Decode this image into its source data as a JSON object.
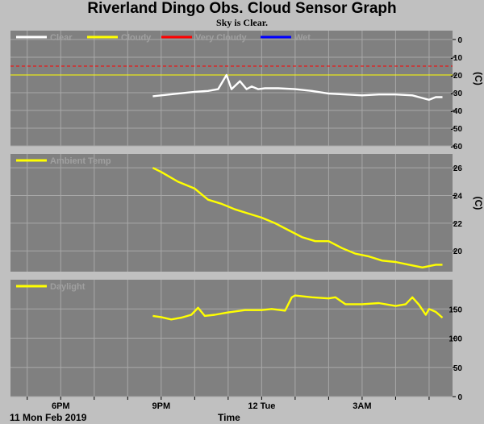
{
  "title": "Riverland Dingo Obs. Cloud Sensor Graph",
  "subtitle": "Sky is Clear.",
  "footer": {
    "date": "11 Mon Feb 2019",
    "xlabel": "Time"
  },
  "colors": {
    "panel_bg": "#808080",
    "page_bg": "#c0c0c0",
    "grid": "#a8a8a8",
    "clear": "#ffffff",
    "cloudy": "#ffff00",
    "very_cloudy": "#ff0000",
    "wet": "#0000ff",
    "legend_text": "#a0a0a0"
  },
  "chart_data": [
    {
      "type": "line",
      "name": "sky",
      "ylabel": "(C)",
      "ylim": [
        -60,
        5
      ],
      "yticks": [
        0,
        -10,
        -20,
        -30,
        -40,
        -50,
        -60
      ],
      "legend": [
        {
          "name": "Clear",
          "color": "#ffffff"
        },
        {
          "name": "Cloudy",
          "color": "#ffff00"
        },
        {
          "name": "Very Cloudy",
          "color": "#ff0000"
        },
        {
          "name": "Wet",
          "color": "#0000ff"
        }
      ],
      "thresholds": [
        {
          "value": -15,
          "color": "#ff0000",
          "dashed": true
        },
        {
          "value": -20,
          "color": "#ffff00",
          "dashed": false
        }
      ],
      "series": [
        {
          "name": "Clear",
          "color": "#ffffff",
          "x": [
            20.75,
            21.0,
            21.5,
            22.0,
            22.4,
            22.7,
            22.95,
            23.1,
            23.35,
            23.55,
            23.7,
            23.9,
            24.1,
            24.5,
            25.0,
            25.5,
            26.0,
            26.5,
            27.0,
            27.5,
            28.0,
            28.5,
            28.8,
            29.0,
            29.2,
            29.4
          ],
          "y": [
            -32,
            -31.5,
            -30.5,
            -29.5,
            -29,
            -28,
            -20,
            -28,
            -23.5,
            -28,
            -26.5,
            -28,
            -27.5,
            -27.5,
            -28,
            -29,
            -30.5,
            -31,
            -31.5,
            -31,
            -31,
            -31.5,
            -33,
            -34,
            -32.5,
            -32.5
          ]
        }
      ]
    },
    {
      "type": "line",
      "name": "ambient",
      "ylabel": "(C)",
      "ylim": [
        18.5,
        27
      ],
      "yticks": [
        26,
        24,
        22,
        20
      ],
      "legend": [
        {
          "name": "Ambient Temp",
          "color": "#ffff00"
        }
      ],
      "series": [
        {
          "name": "Ambient Temp",
          "color": "#ffff00",
          "x": [
            20.75,
            21.0,
            21.5,
            22.0,
            22.4,
            22.8,
            23.2,
            23.6,
            24.0,
            24.4,
            24.8,
            25.2,
            25.6,
            26.0,
            26.4,
            26.8,
            27.2,
            27.6,
            28.0,
            28.4,
            28.8,
            29.2,
            29.4
          ],
          "y": [
            26.0,
            25.7,
            25.0,
            24.5,
            23.7,
            23.4,
            23.0,
            22.7,
            22.4,
            22.0,
            21.5,
            21.0,
            20.7,
            20.7,
            20.2,
            19.8,
            19.6,
            19.3,
            19.2,
            19.0,
            18.8,
            19.0,
            19.0
          ]
        }
      ]
    },
    {
      "type": "line",
      "name": "daylight",
      "ylabel": "",
      "ylim": [
        0,
        200
      ],
      "yticks": [
        150,
        100,
        50,
        0
      ],
      "legend": [
        {
          "name": "Daylight",
          "color": "#ffff00"
        }
      ],
      "series": [
        {
          "name": "Daylight",
          "color": "#ffff00",
          "x": [
            20.75,
            21.0,
            21.3,
            21.6,
            21.9,
            22.1,
            22.3,
            22.6,
            23.0,
            23.5,
            24.0,
            24.3,
            24.7,
            24.9,
            25.0,
            25.5,
            26.0,
            26.2,
            26.5,
            27.0,
            27.5,
            28.0,
            28.3,
            28.5,
            28.7,
            28.9,
            29.0,
            29.2,
            29.4
          ],
          "y": [
            138,
            136,
            132,
            135,
            140,
            152,
            138,
            140,
            144,
            148,
            148,
            150,
            147,
            170,
            173,
            170,
            168,
            170,
            158,
            158,
            160,
            155,
            158,
            170,
            157,
            140,
            150,
            145,
            135
          ]
        }
      ]
    }
  ],
  "x_axis": {
    "xlim": [
      16.5,
      29.7
    ],
    "ticks": [
      {
        "value": 18,
        "label": "6PM"
      },
      {
        "value": 21,
        "label": "9PM"
      },
      {
        "value": 24,
        "label": "12 Tue"
      },
      {
        "value": 27,
        "label": "3AM"
      }
    ],
    "minor": [
      17,
      18,
      19,
      20,
      21,
      22,
      23,
      24,
      25,
      26,
      27,
      28,
      29
    ]
  }
}
